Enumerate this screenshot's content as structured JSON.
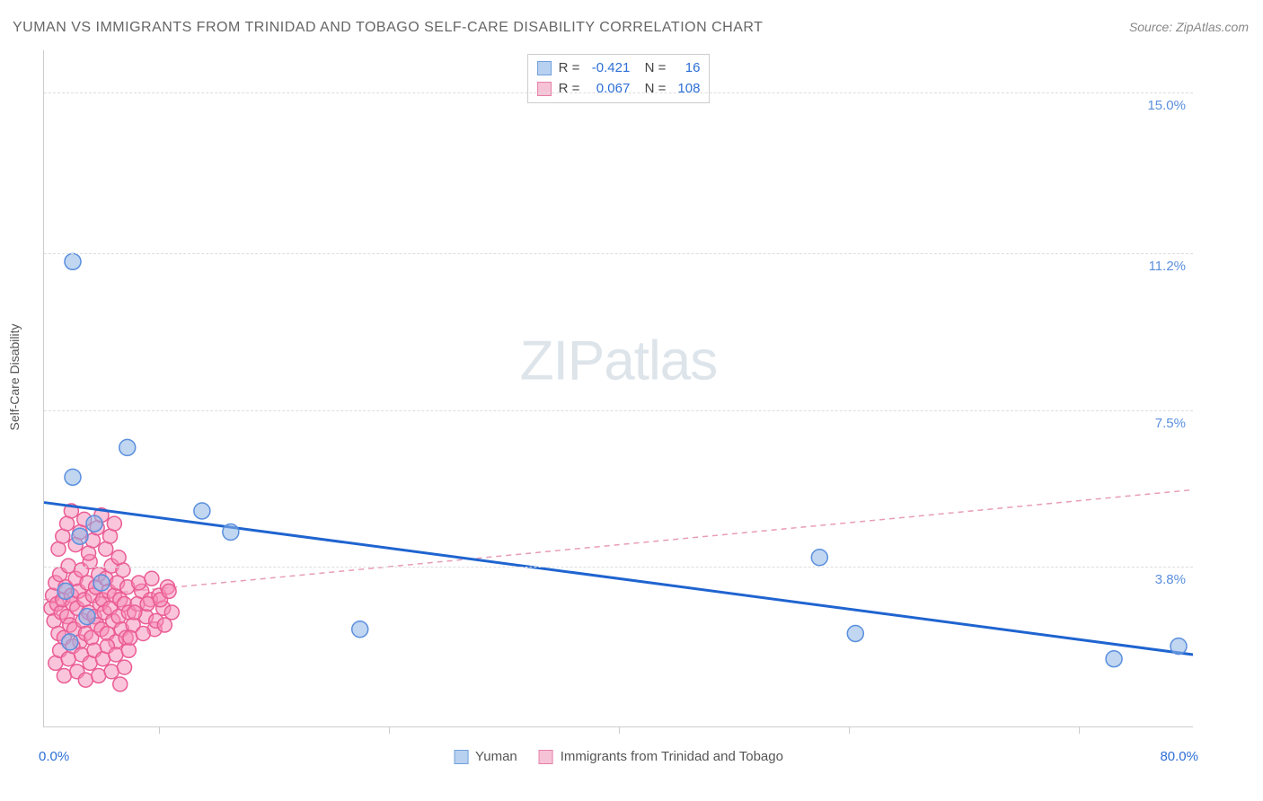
{
  "title": "YUMAN VS IMMIGRANTS FROM TRINIDAD AND TOBAGO SELF-CARE DISABILITY CORRELATION CHART",
  "source": "Source: ZipAtlas.com",
  "ylabel": "Self-Care Disability",
  "watermark_a": "ZIP",
  "watermark_b": "atlas",
  "axis": {
    "x_min_label": "0.0%",
    "x_max_label": "80.0%",
    "x_min": 0.0,
    "x_max": 80.0,
    "y_min": 0.0,
    "y_max": 16.0,
    "x_min_color": "#2d6fd6",
    "x_max_color": "#2d6fd6"
  },
  "y_ticks": [
    {
      "v": 3.8,
      "label": "3.8%",
      "color": "#5a8fde"
    },
    {
      "v": 7.5,
      "label": "7.5%",
      "color": "#5a8fde"
    },
    {
      "v": 11.2,
      "label": "11.2%",
      "color": "#5a8fde"
    },
    {
      "v": 15.0,
      "label": "15.0%",
      "color": "#5a8fde"
    }
  ],
  "x_ticks": [
    8,
    24,
    40,
    56,
    72
  ],
  "grid_color": "#dddddd",
  "legend_top": [
    {
      "swatch_fill": "#b8d1f0",
      "swatch_border": "#6fa0dc",
      "r": "-0.421",
      "n": "16"
    },
    {
      "swatch_fill": "#f6c3d6",
      "swatch_border": "#e67fa8",
      "r": "0.067",
      "n": "108"
    }
  ],
  "legend_bottom": [
    {
      "swatch_fill": "#b8d1f0",
      "swatch_border": "#6fa0dc",
      "label": "Yuman"
    },
    {
      "swatch_fill": "#f6c3d6",
      "swatch_border": "#e67fa8",
      "label": "Immigrants from Trinidad and Tobago"
    }
  ],
  "series": {
    "yuman": {
      "color_fill": "rgba(140,180,230,0.55)",
      "color_stroke": "#5a8fde",
      "marker_r": 9,
      "points": [
        [
          2.0,
          11.0
        ],
        [
          2.0,
          5.9
        ],
        [
          5.8,
          6.6
        ],
        [
          11.0,
          5.1
        ],
        [
          13.0,
          4.6
        ],
        [
          22.0,
          2.3
        ],
        [
          54.0,
          4.0
        ],
        [
          56.5,
          2.2
        ],
        [
          74.5,
          1.6
        ],
        [
          79.0,
          1.9
        ],
        [
          2.5,
          4.5
        ],
        [
          1.5,
          3.2
        ],
        [
          3.0,
          2.6
        ],
        [
          1.8,
          2.0
        ],
        [
          4.0,
          3.4
        ],
        [
          3.5,
          4.8
        ]
      ],
      "trend": {
        "x1": 0,
        "y1": 5.3,
        "x2": 80,
        "y2": 1.7,
        "stroke": "#1f64d0",
        "width": 3,
        "dash": "none"
      }
    },
    "immigrants": {
      "color_fill": "rgba(246,140,182,0.5)",
      "color_stroke": "#ea5c95",
      "marker_r": 8,
      "points": [
        [
          0.5,
          2.8
        ],
        [
          0.6,
          3.1
        ],
        [
          0.7,
          2.5
        ],
        [
          0.8,
          3.4
        ],
        [
          0.9,
          2.9
        ],
        [
          1.0,
          2.2
        ],
        [
          1.1,
          3.6
        ],
        [
          1.2,
          2.7
        ],
        [
          1.3,
          3.0
        ],
        [
          1.4,
          2.1
        ],
        [
          1.5,
          3.3
        ],
        [
          1.6,
          2.6
        ],
        [
          1.7,
          3.8
        ],
        [
          1.8,
          2.4
        ],
        [
          1.9,
          3.1
        ],
        [
          2.0,
          2.9
        ],
        [
          2.1,
          2.3
        ],
        [
          2.2,
          3.5
        ],
        [
          2.3,
          2.8
        ],
        [
          2.4,
          3.2
        ],
        [
          2.5,
          2.0
        ],
        [
          2.6,
          3.7
        ],
        [
          2.7,
          2.5
        ],
        [
          2.8,
          3.0
        ],
        [
          2.9,
          2.2
        ],
        [
          3.0,
          3.4
        ],
        [
          3.1,
          2.7
        ],
        [
          3.2,
          3.9
        ],
        [
          3.3,
          2.1
        ],
        [
          3.4,
          3.1
        ],
        [
          3.5,
          2.6
        ],
        [
          3.6,
          3.3
        ],
        [
          3.7,
          2.4
        ],
        [
          3.8,
          3.6
        ],
        [
          3.9,
          2.9
        ],
        [
          4.0,
          2.3
        ],
        [
          4.1,
          3.0
        ],
        [
          4.2,
          2.7
        ],
        [
          4.3,
          3.5
        ],
        [
          4.4,
          2.2
        ],
        [
          4.5,
          3.2
        ],
        [
          4.6,
          2.8
        ],
        [
          4.7,
          3.8
        ],
        [
          4.8,
          2.5
        ],
        [
          4.9,
          3.1
        ],
        [
          5.0,
          2.0
        ],
        [
          5.1,
          3.4
        ],
        [
          5.2,
          2.6
        ],
        [
          5.3,
          3.0
        ],
        [
          5.4,
          2.3
        ],
        [
          5.5,
          3.7
        ],
        [
          5.6,
          2.9
        ],
        [
          5.7,
          2.1
        ],
        [
          5.8,
          3.3
        ],
        [
          5.9,
          2.7
        ],
        [
          1.0,
          4.2
        ],
        [
          1.3,
          4.5
        ],
        [
          1.6,
          4.8
        ],
        [
          1.9,
          5.1
        ],
        [
          2.2,
          4.3
        ],
        [
          2.5,
          4.6
        ],
        [
          2.8,
          4.9
        ],
        [
          3.1,
          4.1
        ],
        [
          3.4,
          4.4
        ],
        [
          3.7,
          4.7
        ],
        [
          4.0,
          5.0
        ],
        [
          4.3,
          4.2
        ],
        [
          4.6,
          4.5
        ],
        [
          4.9,
          4.8
        ],
        [
          5.2,
          4.0
        ],
        [
          0.8,
          1.5
        ],
        [
          1.1,
          1.8
        ],
        [
          1.4,
          1.2
        ],
        [
          1.7,
          1.6
        ],
        [
          2.0,
          1.9
        ],
        [
          2.3,
          1.3
        ],
        [
          2.6,
          1.7
        ],
        [
          2.9,
          1.1
        ],
        [
          3.2,
          1.5
        ],
        [
          3.5,
          1.8
        ],
        [
          3.8,
          1.2
        ],
        [
          4.1,
          1.6
        ],
        [
          4.4,
          1.9
        ],
        [
          4.7,
          1.3
        ],
        [
          5.0,
          1.7
        ],
        [
          5.3,
          1.0
        ],
        [
          5.6,
          1.4
        ],
        [
          5.9,
          1.8
        ],
        [
          6.2,
          2.4
        ],
        [
          6.5,
          2.9
        ],
        [
          6.8,
          3.2
        ],
        [
          7.1,
          2.6
        ],
        [
          7.4,
          3.0
        ],
        [
          7.7,
          2.3
        ],
        [
          8.0,
          3.1
        ],
        [
          8.3,
          2.8
        ],
        [
          8.6,
          3.3
        ],
        [
          6.0,
          2.1
        ],
        [
          6.3,
          2.7
        ],
        [
          6.6,
          3.4
        ],
        [
          6.9,
          2.2
        ],
        [
          7.2,
          2.9
        ],
        [
          7.5,
          3.5
        ],
        [
          7.8,
          2.5
        ],
        [
          8.1,
          3.0
        ],
        [
          8.4,
          2.4
        ],
        [
          8.7,
          3.2
        ],
        [
          8.9,
          2.7
        ]
      ],
      "trend": {
        "x1": 0,
        "y1": 3.0,
        "x2": 80,
        "y2": 5.6,
        "stroke": "#e89cb8",
        "width": 1.5,
        "dash": "6,5"
      }
    }
  }
}
